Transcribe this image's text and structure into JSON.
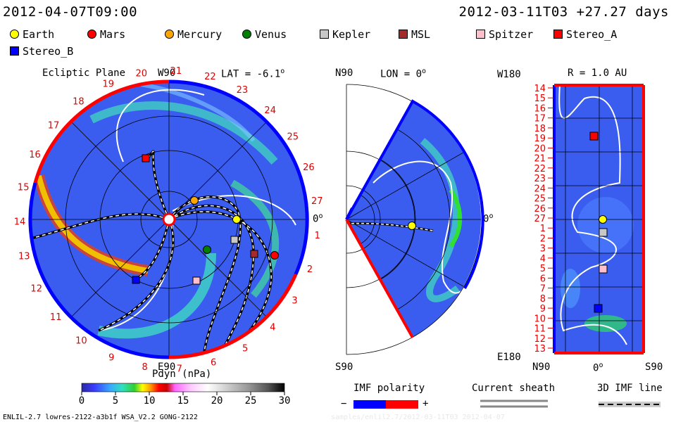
{
  "header": {
    "left_time": "2012-04-07T09:00",
    "right_time": "2012-03-11T03 +27.27 days"
  },
  "legend": [
    {
      "label": "Earth",
      "shape": "circle",
      "color": "#ffff00"
    },
    {
      "label": "Mars",
      "shape": "circle",
      "color": "#ff0000"
    },
    {
      "label": "Mercury",
      "shape": "circle",
      "color": "#ffa500"
    },
    {
      "label": "Venus",
      "shape": "circle",
      "color": "#008000"
    },
    {
      "label": "Kepler",
      "shape": "square",
      "color": "#c8c8c8"
    },
    {
      "label": "MSL",
      "shape": "square",
      "color": "#a52a2a"
    },
    {
      "label": "Spitzer",
      "shape": "square",
      "color": "#ffc0cb"
    },
    {
      "label": "Stereo_A",
      "shape": "square",
      "color": "#ff0000"
    },
    {
      "label": "Stereo_B",
      "shape": "square",
      "color": "#0000ff"
    }
  ],
  "panels": {
    "ecliptic": {
      "title": "Ecliptic Plane",
      "top_label": "W90",
      "lat_label": "LAT = -6.1",
      "lat_degree": "o",
      "right_label": "0",
      "right_degree": "o",
      "bottom_label": "E90",
      "carrington_numbers": [
        "1",
        "2",
        "3",
        "4",
        "5",
        "6",
        "7",
        "8",
        "9",
        "10",
        "11",
        "12",
        "13",
        "14",
        "15",
        "16",
        "17",
        "18",
        "19",
        "20",
        "21",
        "22",
        "23",
        "24",
        "25",
        "26",
        "27"
      ]
    },
    "meridional": {
      "top_label": "N90",
      "lon_label": "LON = 0",
      "lon_degree": "o",
      "right_label": "0",
      "right_degree": "o",
      "bottom_label": "S90"
    },
    "radial": {
      "left_top": "W180",
      "title": "R = 1.0 AU",
      "bottom_left": "E180",
      "bottom_n": "N90",
      "bottom_zero": "0",
      "bottom_zero_degree": "o",
      "bottom_s": "S90",
      "carrington_column": [
        "14",
        "15",
        "16",
        "17",
        "18",
        "19",
        "20",
        "21",
        "22",
        "23",
        "24",
        "25",
        "26",
        "27",
        "1",
        "2",
        "3",
        "4",
        "5",
        "6",
        "7",
        "8",
        "9",
        "10",
        "11",
        "12",
        "13"
      ]
    }
  },
  "colorbar": {
    "label": "Pdyn (nPa)",
    "ticks": [
      "0",
      "5",
      "10",
      "15",
      "20",
      "25",
      "30"
    ]
  },
  "imf_polarity": {
    "label": "IMF polarity",
    "minus": "−",
    "plus": "+"
  },
  "current_sheath": {
    "label": "Current sheath"
  },
  "imf_line": {
    "label": "3D IMF line"
  },
  "footer": {
    "left": "ENLIL-2.7 lowres-2122-a3b1f WSA_V2.2 GONG-2122",
    "right": "samples/enlil2.7/2012-03-11T03 2012-04-07"
  },
  "colors": {
    "background_field": "#3a5df0",
    "positive_polarity": "#ff0000",
    "negative_polarity": "#0000ff",
    "dense_stream": "#34e0b0"
  }
}
